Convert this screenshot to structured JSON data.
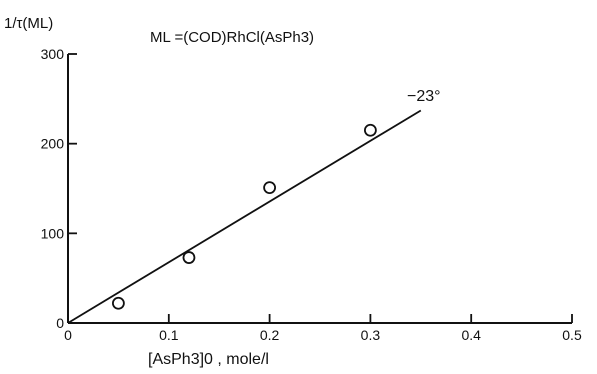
{
  "chart_data": {
    "type": "scatter",
    "title": "ML =(COD)RhCl(AsPh3)",
    "ylabel": "1/τ(ML)",
    "xlabel": "[AsPh3]0 , mole/l",
    "annotation": "−23°",
    "xlim": [
      0,
      0.5
    ],
    "ylim": [
      0,
      300
    ],
    "x_ticks": [
      0,
      0.1,
      0.2,
      0.3,
      0.4,
      0.5
    ],
    "x_tick_labels": [
      "0",
      "0.1",
      "0.2",
      "0.3",
      "0.4",
      "0.5"
    ],
    "y_ticks": [
      0,
      100,
      200,
      300
    ],
    "y_tick_labels": [
      "0",
      "100",
      "200",
      "300"
    ],
    "points": [
      {
        "x": 0.05,
        "y": 22
      },
      {
        "x": 0.12,
        "y": 73
      },
      {
        "x": 0.2,
        "y": 151
      },
      {
        "x": 0.3,
        "y": 215
      }
    ],
    "fit_line": {
      "x": [
        0,
        0.35
      ],
      "y": [
        0,
        237
      ]
    },
    "grid": false,
    "legend": "none"
  }
}
